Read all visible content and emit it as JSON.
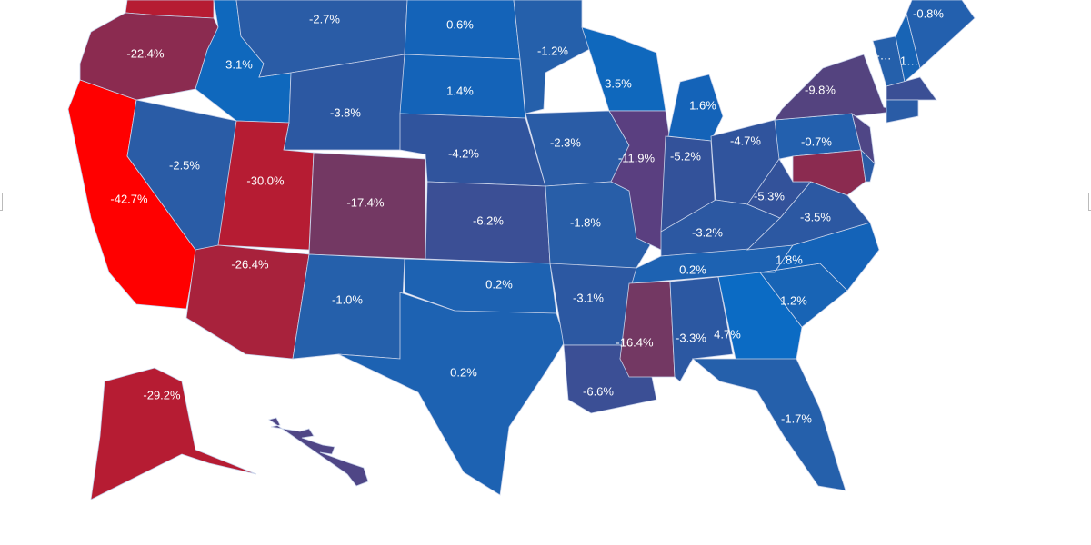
{
  "map": {
    "regions": [
      {
        "value": "",
        "color": "#b61c33"
      },
      {
        "value": "-22.4%",
        "color": "#8b2b50"
      },
      {
        "value": "-42.7%",
        "color": "#ff0000"
      },
      {
        "value": "-2.5%",
        "color": "#2a5ca6"
      },
      {
        "value": "3.1%",
        "color": "#0f68bd"
      },
      {
        "value": "-2.7%",
        "color": "#2a5ca6"
      },
      {
        "value": "-3.8%",
        "color": "#2c58a2"
      },
      {
        "value": "-30.0%",
        "color": "#b61c33"
      },
      {
        "value": "-17.4%",
        "color": "#733863"
      },
      {
        "value": "-26.4%",
        "color": "#a8223c"
      },
      {
        "value": "-1.0%",
        "color": "#2560ab"
      },
      {
        "value": "0.6%",
        "color": "#1463b8"
      },
      {
        "value": "1.4%",
        "color": "#1463b8"
      },
      {
        "value": "-4.2%",
        "color": "#30549d"
      },
      {
        "value": "-6.2%",
        "color": "#3b4f95"
      },
      {
        "value": "0.2%",
        "color": "#1d62b2"
      },
      {
        "value": "0.2%",
        "color": "#1d62b2"
      },
      {
        "value": "-1.2%",
        "color": "#2560ab"
      },
      {
        "value": "-2.3%",
        "color": "#2a5ca6"
      },
      {
        "value": "-1.8%",
        "color": "#285ea8"
      },
      {
        "value": "-3.1%",
        "color": "#2c58a2"
      },
      {
        "value": "-6.6%",
        "color": "#3b4f95"
      },
      {
        "value": "3.5%",
        "color": "#0f68bd"
      },
      {
        "value": "-11.9%",
        "color": "#5a3f80"
      },
      {
        "value": "1.6%",
        "color": "#1463b8"
      },
      {
        "value": "-5.2%",
        "color": "#33529a"
      },
      {
        "value": "-4.7%",
        "color": "#30549d"
      },
      {
        "value": "-3.2%",
        "color": "#2c58a2"
      },
      {
        "value": "0.2%",
        "color": "#1d62b2"
      },
      {
        "value": "-16.4%",
        "color": "#733863"
      },
      {
        "value": "-3.3%",
        "color": "#2c58a2"
      },
      {
        "value": "4.7%",
        "color": "#0b6bc4"
      },
      {
        "value": "-1.7%",
        "color": "#2560ab"
      },
      {
        "value": "1.2%",
        "color": "#1864b5"
      },
      {
        "value": "1.8%",
        "color": "#1463b8"
      },
      {
        "value": "-3.5%",
        "color": "#2c58a2"
      },
      {
        "value": "-5.3%",
        "color": "#33529a"
      },
      {
        "value": "-0.7%",
        "color": "#2360ae"
      },
      {
        "value": "-9.8%",
        "color": "#54437f"
      },
      {
        "value": "",
        "color": "#4f4686"
      },
      {
        "value": "",
        "color": "#8b2b50"
      },
      {
        "value": "",
        "color": "#2a5ca6"
      },
      {
        "value": "-…",
        "color": "#2560ab"
      },
      {
        "value": "1…",
        "color": "#1864b5"
      },
      {
        "value": "-0.8%",
        "color": "#2360ae"
      },
      {
        "value": "",
        "color": "#3b4f95"
      },
      {
        "value": "",
        "color": "#2a5ca6"
      },
      {
        "value": "-29.2%",
        "color": "#b61c33"
      },
      {
        "value": "",
        "color": "#4f4686"
      }
    ]
  }
}
